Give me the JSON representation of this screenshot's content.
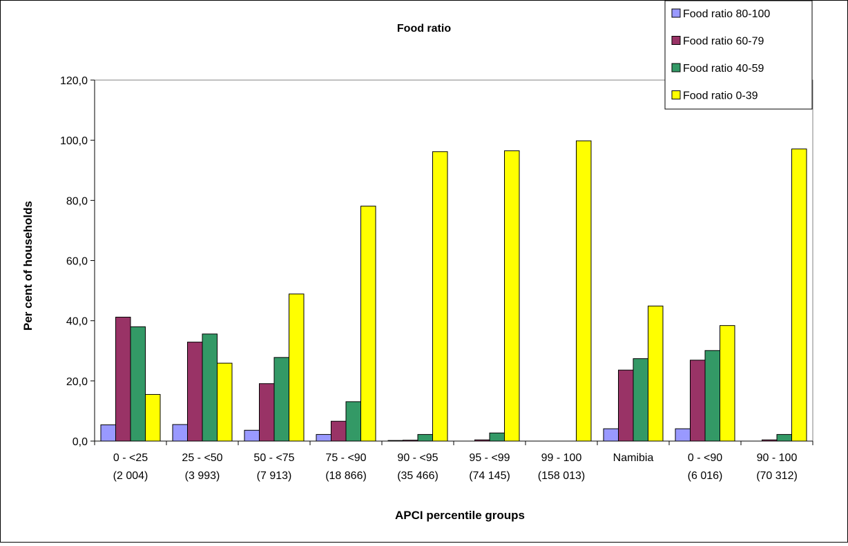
{
  "chart_data": {
    "type": "bar",
    "title": "Food ratio",
    "xlabel": "APCI percentile groups",
    "ylabel": "Per cent of households",
    "ylim": [
      0,
      120
    ],
    "yticks": [
      "0,0",
      "20,0",
      "40,0",
      "60,0",
      "80,0",
      "100,0",
      "120,0"
    ],
    "grid": false,
    "legend_position": "top-right",
    "categories": [
      [
        "0 - <25",
        "(2 004)"
      ],
      [
        "25 - <50",
        "(3 993)"
      ],
      [
        "50 - <75",
        "(7 913)"
      ],
      [
        "75 - <90",
        "(18 866)"
      ],
      [
        "90 - <95",
        "(35 466)"
      ],
      [
        "95 - <99",
        "(74 145)"
      ],
      [
        "99 - 100",
        "(158 013)"
      ],
      [
        "Namibia",
        ""
      ],
      [
        "0 - <90",
        "(6 016)"
      ],
      [
        "90 - 100",
        "(70 312)"
      ]
    ],
    "series": [
      {
        "name": "Food ratio 80-100",
        "color": "#9999ff",
        "values": [
          5.4,
          5.5,
          3.6,
          2.2,
          0.2,
          0.0,
          0.0,
          4.1,
          4.1,
          0.0
        ]
      },
      {
        "name": "Food ratio 60-79",
        "color": "#993366",
        "values": [
          41.2,
          32.9,
          19.1,
          6.6,
          0.3,
          0.4,
          0.0,
          23.6,
          26.9,
          0.4
        ]
      },
      {
        "name": "Food ratio 40-59",
        "color": "#339966",
        "values": [
          38.0,
          35.6,
          27.8,
          13.1,
          2.2,
          2.7,
          0.0,
          27.4,
          30.1,
          2.2
        ]
      },
      {
        "name": "Food ratio 0-39",
        "color": "#ffff00",
        "values": [
          15.5,
          25.9,
          48.9,
          78.1,
          96.2,
          96.5,
          99.8,
          44.9,
          38.4,
          97.1
        ]
      }
    ]
  }
}
